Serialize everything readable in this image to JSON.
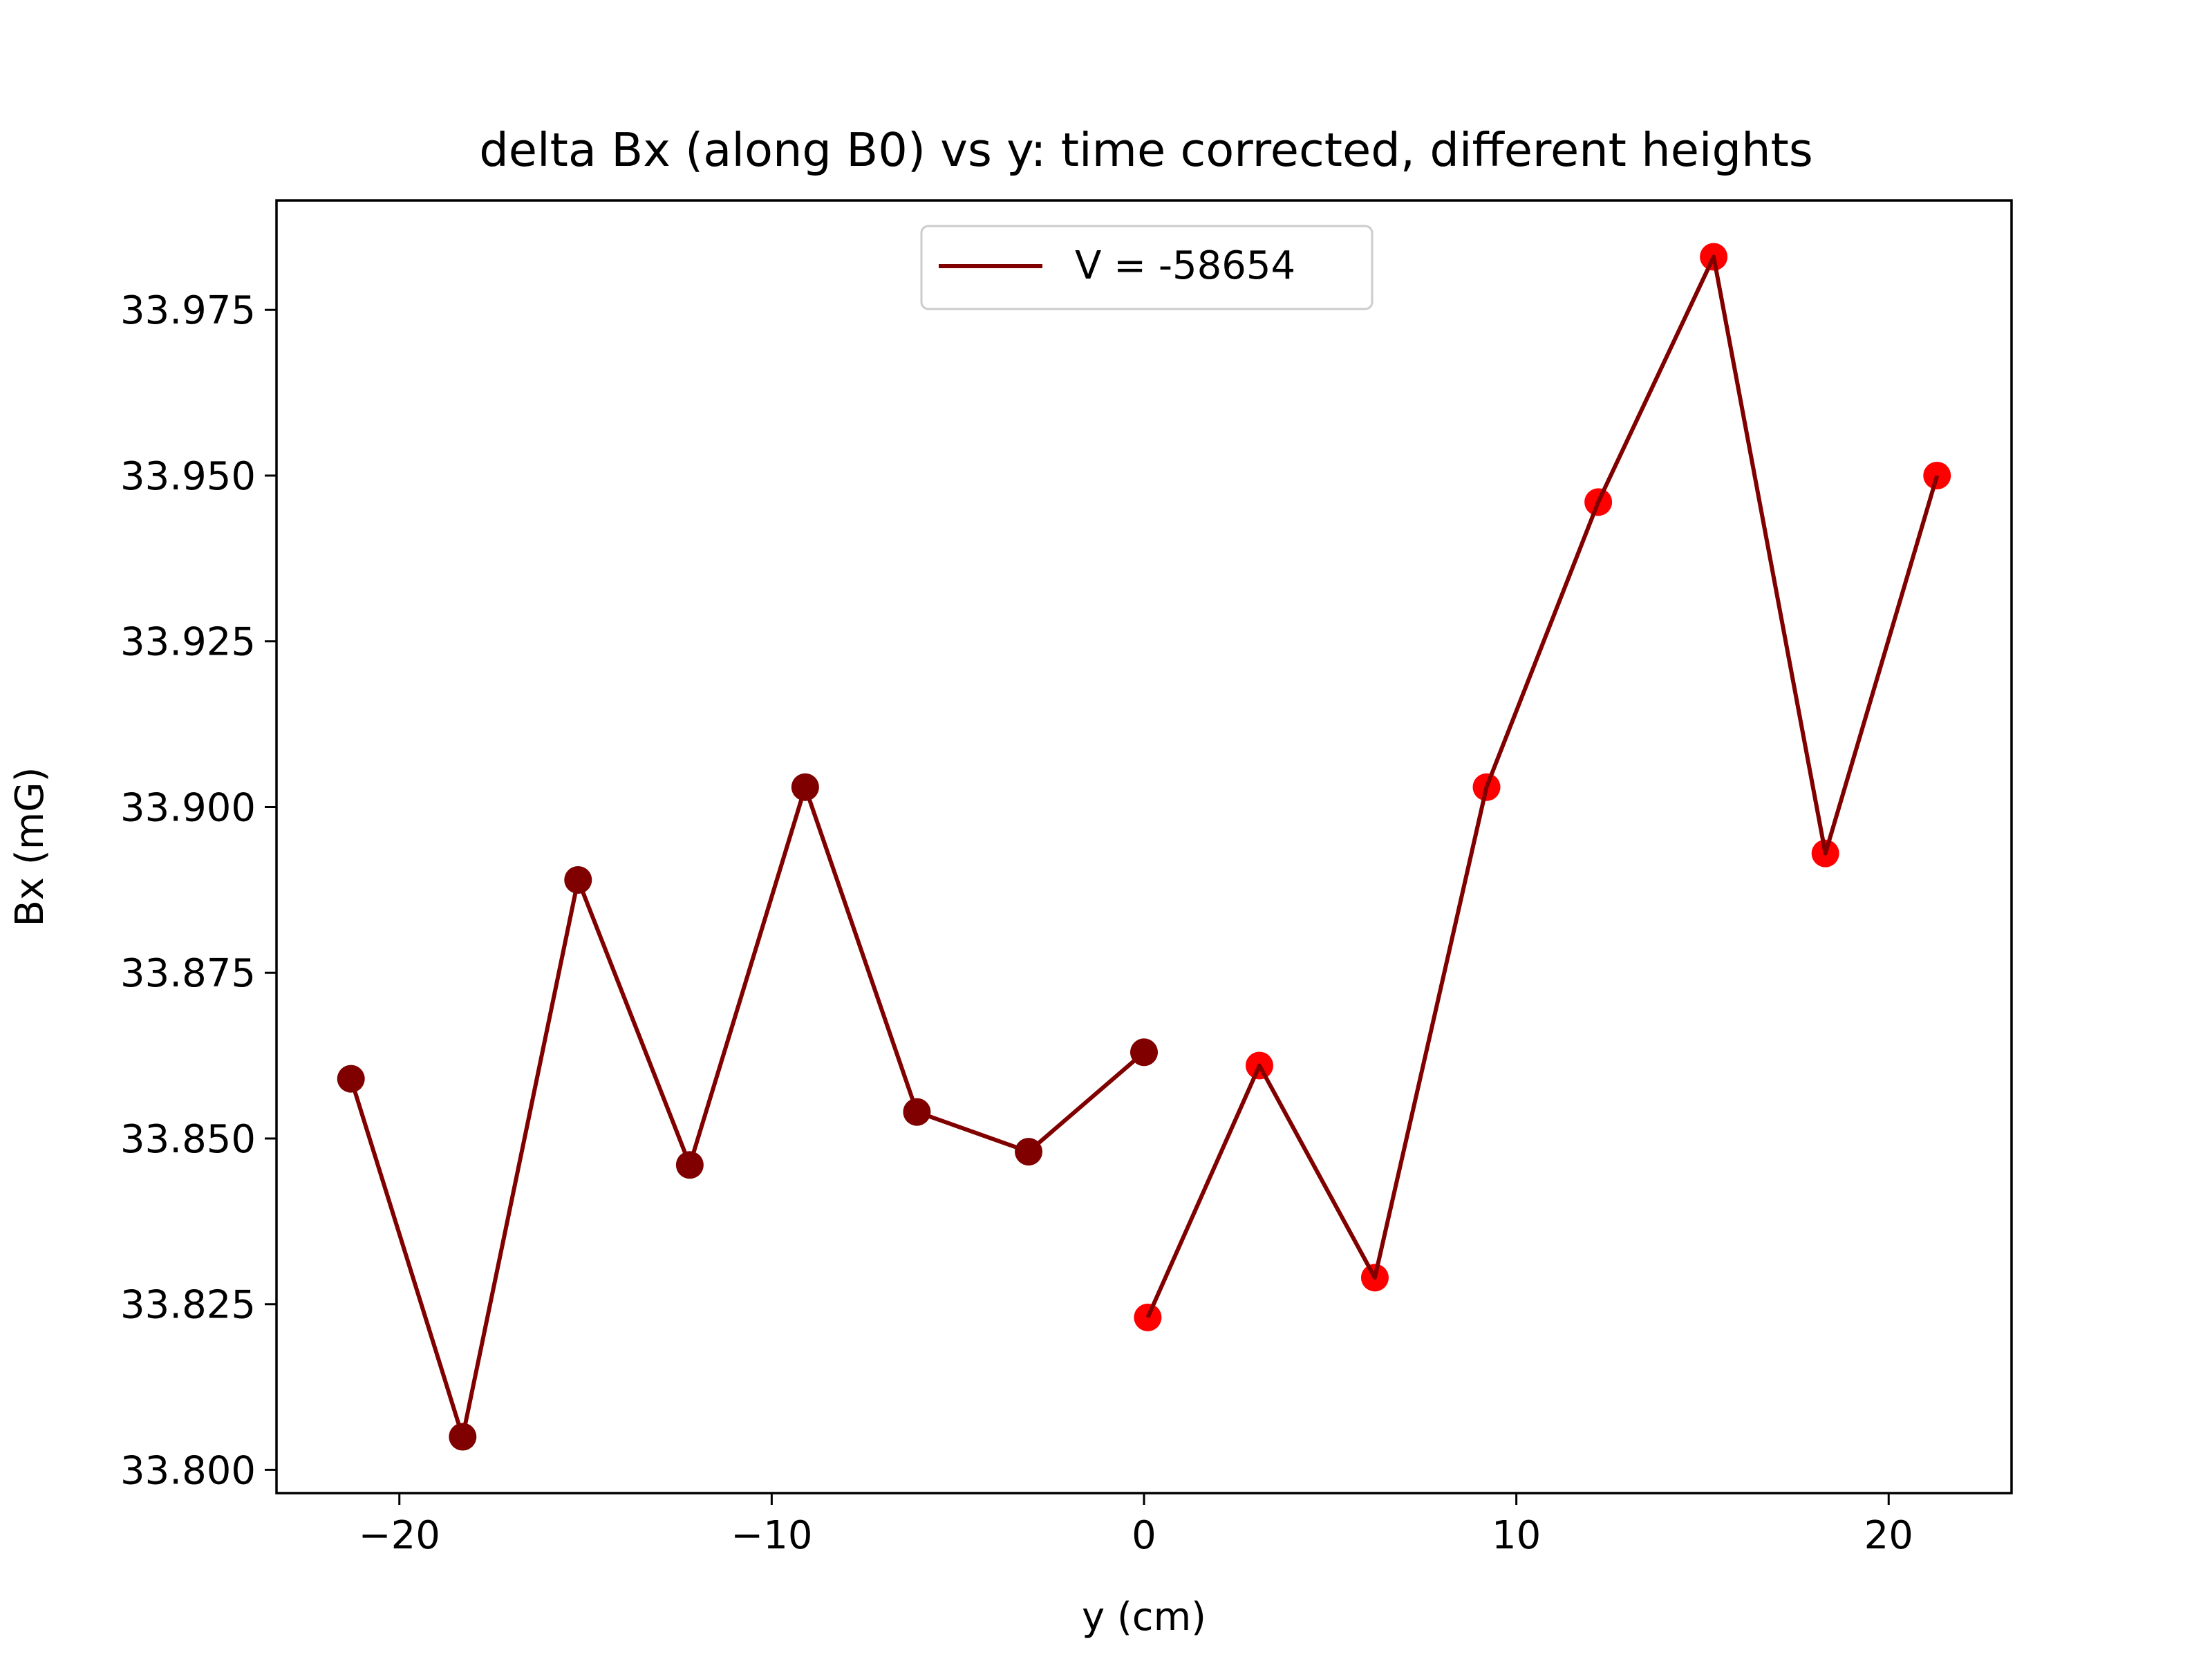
{
  "chart_data": {
    "type": "line",
    "title": "delta Bx (along B0) vs y: time corrected, different heights",
    "xlabel": "y (cm)",
    "ylabel": "Bx (mG)",
    "xlim": [
      -23.3,
      23.3
    ],
    "ylim": [
      33.7965,
      33.9915
    ],
    "x_ticks": [
      -20,
      -10,
      0,
      10,
      20
    ],
    "x_tick_labels": [
      "−20",
      "−10",
      "0",
      "10",
      "20"
    ],
    "y_ticks": [
      33.8,
      33.825,
      33.85,
      33.875,
      33.9,
      33.925,
      33.95,
      33.975
    ],
    "y_tick_labels": [
      "33.800",
      "33.825",
      "33.850",
      "33.875",
      "33.900",
      "33.925",
      "33.950",
      "33.975"
    ],
    "grid": false,
    "legend": {
      "placement": "upper center",
      "entries": [
        {
          "label": "V = -58654",
          "color": "#800000"
        }
      ]
    },
    "series": [
      {
        "name": "V = -58654",
        "line_color": "#800000",
        "marker_color": "#800000",
        "x": [
          -21.3,
          -18.3,
          -15.2,
          -12.2,
          -9.1,
          -6.1,
          -3.1,
          0.0
        ],
        "y": [
          33.859,
          33.805,
          33.889,
          33.846,
          33.903,
          33.854,
          33.848,
          33.863
        ]
      },
      {
        "line_color": "#800000",
        "marker_color": "#ff0000",
        "x": [
          0.1,
          3.1,
          6.2,
          9.2,
          12.2,
          15.3,
          18.3,
          21.3
        ],
        "y": [
          33.823,
          33.861,
          33.829,
          33.903,
          33.946,
          33.983,
          33.893,
          33.95
        ]
      }
    ]
  }
}
